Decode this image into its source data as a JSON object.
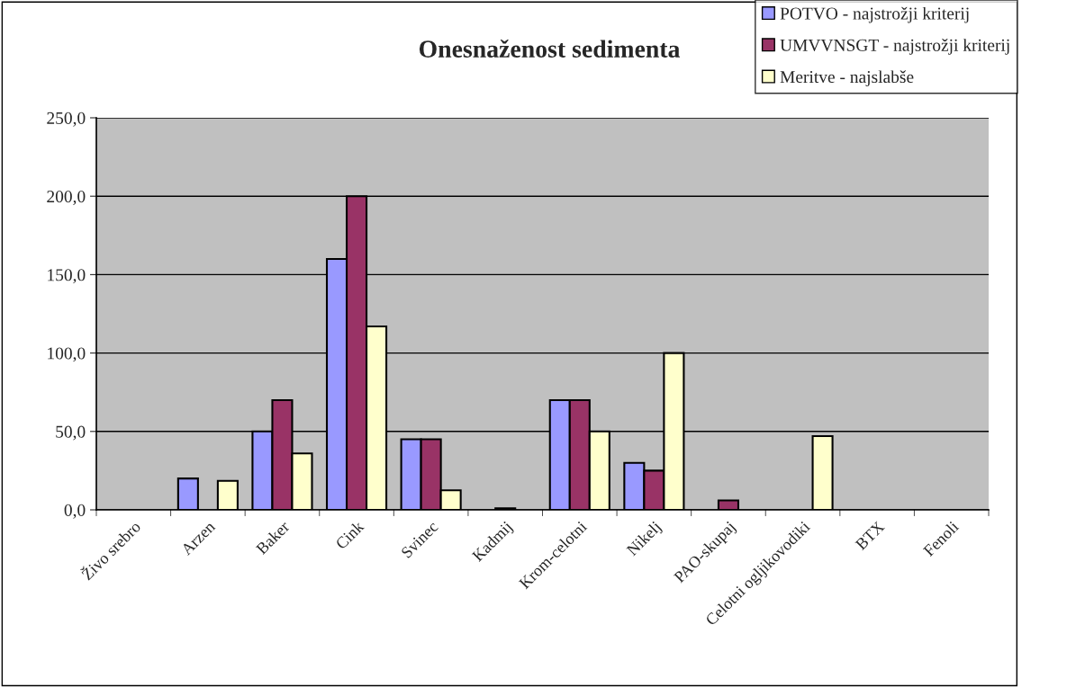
{
  "chart_data": {
    "type": "bar",
    "title": "Onesnaženost sedimenta",
    "categories": [
      "Živo srebro",
      "Arzen",
      "Baker",
      "Cink",
      "Svinec",
      "Kadmij",
      "Krom-celotni",
      "Nikelj",
      "PAO-skupaj",
      "Celotni ogljikovodiki",
      "BTX",
      "Fenoli"
    ],
    "series": [
      {
        "name": "POTVO - najstrožji kriterij",
        "color": "#9999ff",
        "values": [
          null,
          20,
          50,
          160,
          45,
          null,
          70,
          30,
          null,
          null,
          null,
          null
        ]
      },
      {
        "name": "UMVVNSGT - najstrožji kriterij",
        "color": "#993366",
        "values": [
          null,
          null,
          70,
          200,
          45,
          1,
          70,
          25,
          6,
          null,
          null,
          null
        ]
      },
      {
        "name": "Meritve - najslabše",
        "color": "#ffffcc",
        "values": [
          null,
          18.5,
          36,
          117,
          12.5,
          null,
          50,
          100,
          null,
          47,
          null,
          null
        ]
      }
    ],
    "ylim": [
      0,
      250
    ],
    "yticks": [
      {
        "value": 0,
        "label": "0,0"
      },
      {
        "value": 50,
        "label": "50,0"
      },
      {
        "value": 100,
        "label": "100,0"
      },
      {
        "value": 150,
        "label": "150,0"
      },
      {
        "value": 200,
        "label": "200,0"
      },
      {
        "value": 250,
        "label": "250,0"
      }
    ],
    "grid": "y",
    "legend": "top right"
  }
}
